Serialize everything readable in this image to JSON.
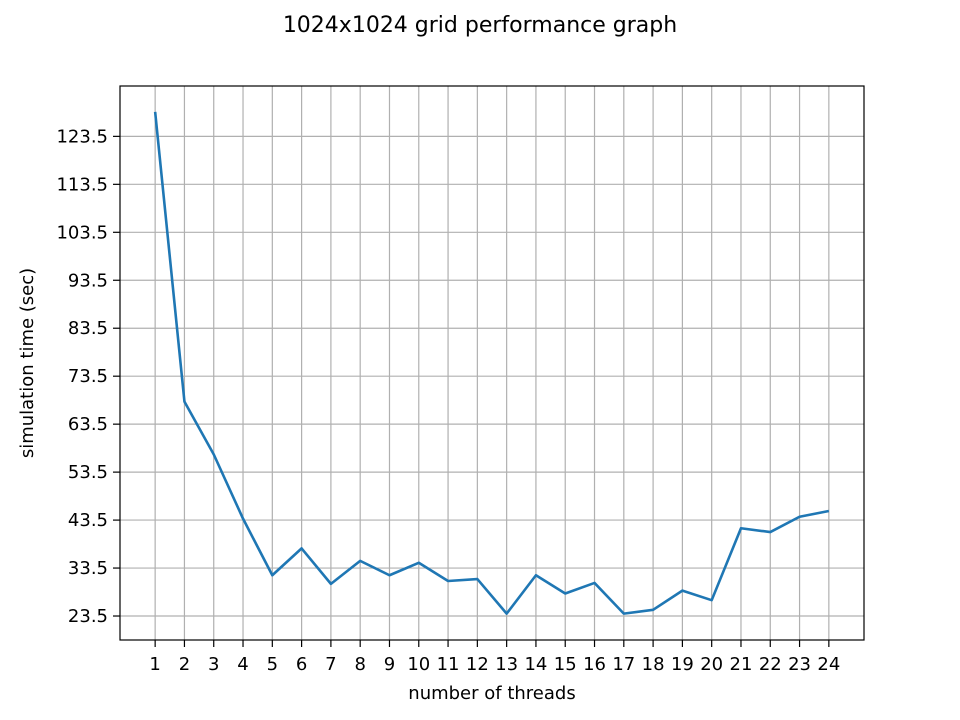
{
  "chart_data": {
    "type": "line",
    "title": "1024x1024 grid performance graph",
    "xlabel": "number of threads",
    "ylabel": "simulation time (sec)",
    "x": [
      1,
      2,
      3,
      4,
      5,
      6,
      7,
      8,
      9,
      10,
      11,
      12,
      13,
      14,
      15,
      16,
      17,
      18,
      19,
      20,
      21,
      22,
      23,
      24
    ],
    "series": [
      {
        "values": [
          128.6,
          68.2,
          57.2,
          43.8,
          32.0,
          37.6,
          30.2,
          35.0,
          32.0,
          34.6,
          30.8,
          31.2,
          24.0,
          32.0,
          28.2,
          30.4,
          24.0,
          24.8,
          28.8,
          26.8,
          41.8,
          41.0,
          44.2,
          45.4
        ],
        "color": "#1f77b4"
      }
    ],
    "xticks": [
      "1",
      "2",
      "3",
      "4",
      "5",
      "6",
      "7",
      "8",
      "9",
      "10",
      "11",
      "12",
      "13",
      "14",
      "15",
      "16",
      "17",
      "18",
      "19",
      "20",
      "21",
      "22",
      "23",
      "24"
    ],
    "yticks": [
      23.5,
      33.5,
      43.5,
      53.5,
      63.5,
      73.5,
      83.5,
      93.5,
      103.5,
      113.5,
      123.5
    ],
    "ytick_labels": [
      "23.5",
      "33.5",
      "43.5",
      "53.5",
      "63.5",
      "73.5",
      "83.5",
      "93.5",
      "103.5",
      "113.5",
      "123.5"
    ],
    "xlim": [
      -0.2,
      25.2
    ],
    "ylim": [
      18.5,
      134.0
    ],
    "grid": true,
    "grid_color": "#b0b0b0",
    "background": "#ffffff"
  }
}
